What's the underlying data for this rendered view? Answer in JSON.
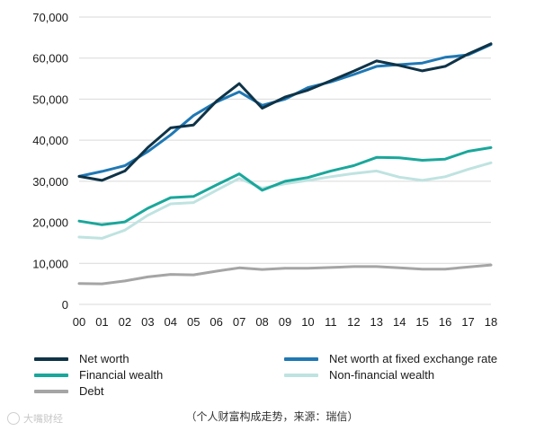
{
  "chart_data": {
    "type": "line",
    "title": "",
    "xlabel": "",
    "ylabel": "",
    "x": [
      "00",
      "01",
      "02",
      "03",
      "04",
      "05",
      "06",
      "07",
      "08",
      "09",
      "10",
      "11",
      "12",
      "13",
      "14",
      "15",
      "16",
      "17",
      "18"
    ],
    "ylim": [
      0,
      70000
    ],
    "yticks": [
      0,
      10000,
      20000,
      30000,
      40000,
      50000,
      60000,
      70000
    ],
    "ytick_labels": [
      "0",
      "10,000",
      "20,000",
      "30,000",
      "40,000",
      "50,000",
      "60,000",
      "70,000"
    ],
    "grid": true,
    "legend_position": "bottom",
    "series": [
      {
        "name": "Net worth",
        "color": "#0f3347",
        "values": [
          31200,
          30200,
          32500,
          38200,
          43000,
          43700,
          49500,
          53800,
          47800,
          50500,
          52200,
          54500,
          56800,
          59300,
          58200,
          56900,
          58000,
          61000,
          63500
        ]
      },
      {
        "name": "Net worth at fixed exchange rate",
        "color": "#1f78b4",
        "values": [
          31200,
          32400,
          33800,
          37200,
          41300,
          46000,
          49300,
          51800,
          48500,
          50000,
          52800,
          54200,
          56000,
          58000,
          58400,
          58800,
          60200,
          60800,
          63300
        ]
      },
      {
        "name": "Financial wealth",
        "color": "#1aa79b",
        "values": [
          20300,
          19400,
          20100,
          23400,
          26000,
          26300,
          29100,
          31800,
          27800,
          30000,
          30900,
          32500,
          33800,
          35800,
          35700,
          35100,
          35400,
          37300,
          38200
        ]
      },
      {
        "name": "Non-financial wealth",
        "color": "#bfe3e1",
        "values": [
          16400,
          16100,
          18100,
          21700,
          24500,
          24800,
          27800,
          30700,
          28300,
          29400,
          30200,
          31100,
          31900,
          32500,
          31000,
          30200,
          31100,
          32900,
          34500
        ]
      },
      {
        "name": "Debt",
        "color": "#a5a5a5",
        "values": [
          5100,
          5000,
          5700,
          6700,
          7300,
          7200,
          8100,
          8900,
          8500,
          8800,
          8800,
          9000,
          9200,
          9200,
          8900,
          8600,
          8600,
          9100,
          9600
        ]
      }
    ]
  },
  "legend": {
    "items": [
      {
        "label": "Net worth",
        "color": "#0f3347"
      },
      {
        "label": "Net worth at fixed exchange rate",
        "color": "#1f78b4"
      },
      {
        "label": "Financial wealth",
        "color": "#1aa79b"
      },
      {
        "label": "Non-financial wealth",
        "color": "#bfe3e1"
      },
      {
        "label": "Debt",
        "color": "#a5a5a5"
      }
    ]
  },
  "caption": "（个人财富构成走势，来源：瑞信）",
  "watermark": "大嘴财经"
}
